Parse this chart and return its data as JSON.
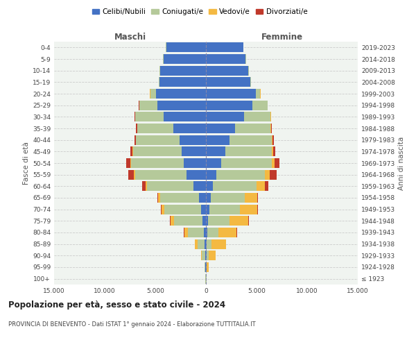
{
  "age_groups": [
    "100+",
    "95-99",
    "90-94",
    "85-89",
    "80-84",
    "75-79",
    "70-74",
    "65-69",
    "60-64",
    "55-59",
    "50-54",
    "45-49",
    "40-44",
    "35-39",
    "30-34",
    "25-29",
    "20-24",
    "15-19",
    "10-14",
    "5-9",
    "0-4"
  ],
  "birth_years": [
    "≤ 1923",
    "1924-1928",
    "1929-1933",
    "1934-1938",
    "1939-1943",
    "1944-1948",
    "1949-1953",
    "1954-1958",
    "1959-1963",
    "1964-1968",
    "1969-1973",
    "1974-1978",
    "1979-1983",
    "1984-1988",
    "1989-1993",
    "1994-1998",
    "1999-2003",
    "2004-2008",
    "2009-2013",
    "2014-2018",
    "2019-2023"
  ],
  "maschi": {
    "celibi": [
      20,
      60,
      80,
      120,
      200,
      350,
      500,
      700,
      1200,
      1900,
      2200,
      2400,
      2600,
      3200,
      4200,
      4800,
      4900,
      4600,
      4500,
      4200,
      3900
    ],
    "coniugati": [
      30,
      80,
      300,
      700,
      1600,
      2800,
      3600,
      3800,
      4600,
      5100,
      5200,
      4800,
      4300,
      3600,
      2800,
      1800,
      600,
      80,
      100,
      80,
      50
    ],
    "vedovi": [
      10,
      30,
      120,
      250,
      350,
      350,
      300,
      200,
      150,
      100,
      60,
      30,
      20,
      10,
      10,
      5,
      40,
      0,
      0,
      0,
      0
    ],
    "divorziati": [
      0,
      0,
      10,
      20,
      40,
      60,
      80,
      100,
      350,
      600,
      400,
      250,
      120,
      80,
      60,
      30,
      0,
      0,
      0,
      0,
      0
    ]
  },
  "femmine": {
    "nubili": [
      20,
      40,
      60,
      80,
      130,
      200,
      350,
      450,
      700,
      1000,
      1500,
      1900,
      2300,
      2900,
      3800,
      4600,
      4900,
      4400,
      4200,
      3900,
      3700
    ],
    "coniugate": [
      20,
      60,
      200,
      500,
      1100,
      2100,
      3000,
      3400,
      4300,
      4800,
      5000,
      4600,
      4200,
      3500,
      2600,
      1500,
      450,
      50,
      50,
      40,
      20
    ],
    "vedove": [
      40,
      200,
      700,
      1400,
      1800,
      1900,
      1700,
      1200,
      800,
      500,
      300,
      150,
      80,
      40,
      20,
      10,
      40,
      0,
      0,
      0,
      0
    ],
    "divorziate": [
      0,
      0,
      10,
      20,
      30,
      40,
      60,
      80,
      350,
      700,
      450,
      200,
      120,
      80,
      50,
      20,
      0,
      0,
      0,
      0,
      0
    ]
  },
  "colors": {
    "celibi": "#4472c4",
    "coniugati": "#b5c99a",
    "vedovi": "#f4b942",
    "divorziati": "#c0392b"
  },
  "xlim": 15000,
  "title": "Popolazione per età, sesso e stato civile - 2024",
  "subtitle": "PROVINCIA DI BENEVENTO - Dati ISTAT 1° gennaio 2024 - Elaborazione TUTTITALIA.IT",
  "xlabel_left": "Maschi",
  "xlabel_right": "Femmine",
  "ylabel_left": "Fasce di età",
  "ylabel_right": "Anni di nascita",
  "legend_labels": [
    "Celibi/Nubili",
    "Coniugati/e",
    "Vedovi/e",
    "Divorziati/e"
  ],
  "bg_color": "#ffffff",
  "plot_bg_color": "#f0f4f0",
  "grid_color": "#cccccc",
  "xticks": [
    -15000,
    -10000,
    -5000,
    0,
    5000,
    10000,
    15000
  ],
  "xtick_labels": [
    "15.000",
    "10.000",
    "5.000",
    "0",
    "5.000",
    "10.000",
    "15.000"
  ]
}
